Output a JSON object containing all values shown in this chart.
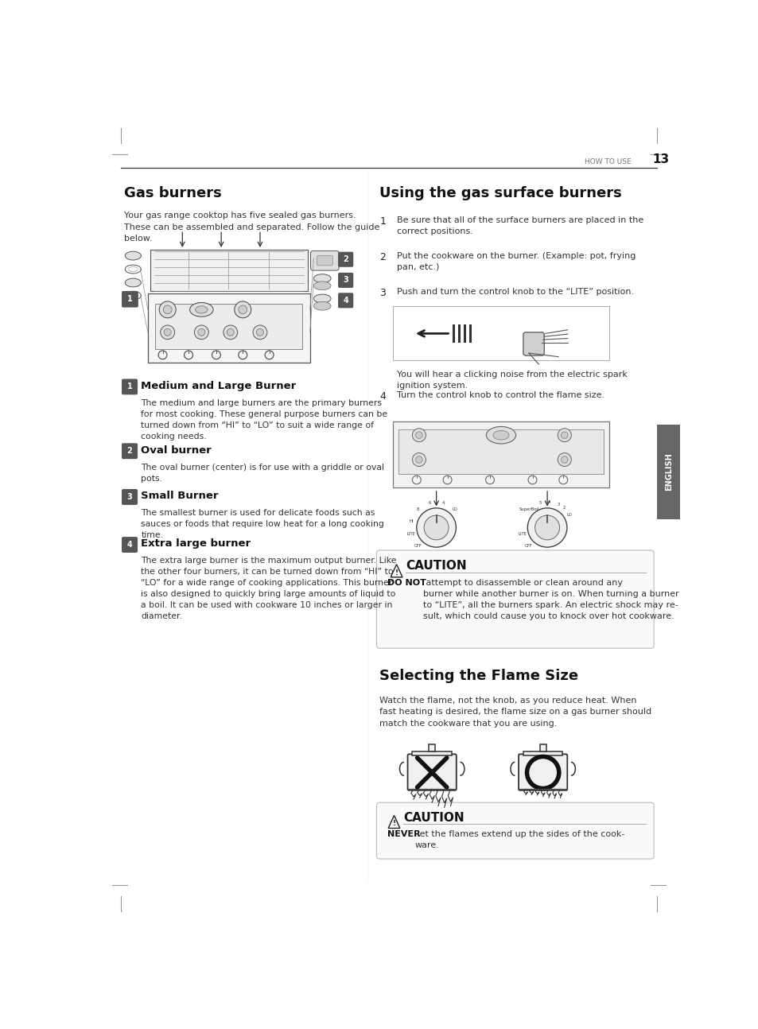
{
  "page_width": 9.54,
  "page_height": 12.94,
  "bg_color": "#ffffff",
  "header_text": "HOW TO USE",
  "page_number": "13",
  "section1_title": "Gas burners",
  "section1_intro": "Your gas range cooktop has five sealed gas burners.\nThese can be assembled and separated. Follow the guide\nbelow.",
  "section2_title": "Using the gas surface burners",
  "burner_items": [
    {
      "num": "1",
      "title": "Medium and Large Burner",
      "body": "The medium and large burners are the primary burners\nfor most cooking. These general purpose burners can be\nturned down from “HI” to “LO” to suit a wide range of\ncooking needs."
    },
    {
      "num": "2",
      "title": "Oval burner",
      "body": "The oval burner (center) is for use with a griddle or oval\npots."
    },
    {
      "num": "3",
      "title": "Small Burner",
      "body": "The smallest burner is used for delicate foods such as\nsauces or foods that require low heat for a long cooking\ntime."
    },
    {
      "num": "4",
      "title": "Extra large burner",
      "body": "The extra large burner is the maximum output burner. Like\nthe other four burners, it can be turned down from “HI” to\n“LO” for a wide range of cooking applications. This burner\nis also designed to quickly bring large amounts of liquid to\na boil. It can be used with cookware 10 inches or larger in\ndiameter."
    }
  ],
  "steps": [
    "Be sure that all of the surface burners are placed in the\ncorrect positions.",
    "Put the cookware on the burner. (Example: pot, frying\npan, etc.)",
    "Push and turn the control knob to the “LITE” position.",
    "Turn the control knob to control the flame size."
  ],
  "spark_note": "You will hear a clicking noise from the electric spark\nignition system.",
  "caution1_title": "CAUTION",
  "caution1_bold": "DO NOT",
  "caution1_body": " attempt to disassemble or clean around any\nburner while another burner is on. When turning a burner\nto “LITE”, all the burners spark. An electric shock may re-\nsult, which could cause you to knock over hot cookware.",
  "section3_title": "Selecting the Flame Size",
  "section3_body": "Watch the flame, not the knob, as you reduce heat. When\nfast heating is desired, the flame size on a gas burner should\nmatch the cookware that you are using.",
  "caution2_title": "CAUTION",
  "caution2_bold": "NEVER",
  "caution2_body": " let the flames extend up the sides of the cook-\nware.",
  "english_tab": "ENGLISH",
  "number_bg": "#555555",
  "english_bg": "#666666"
}
